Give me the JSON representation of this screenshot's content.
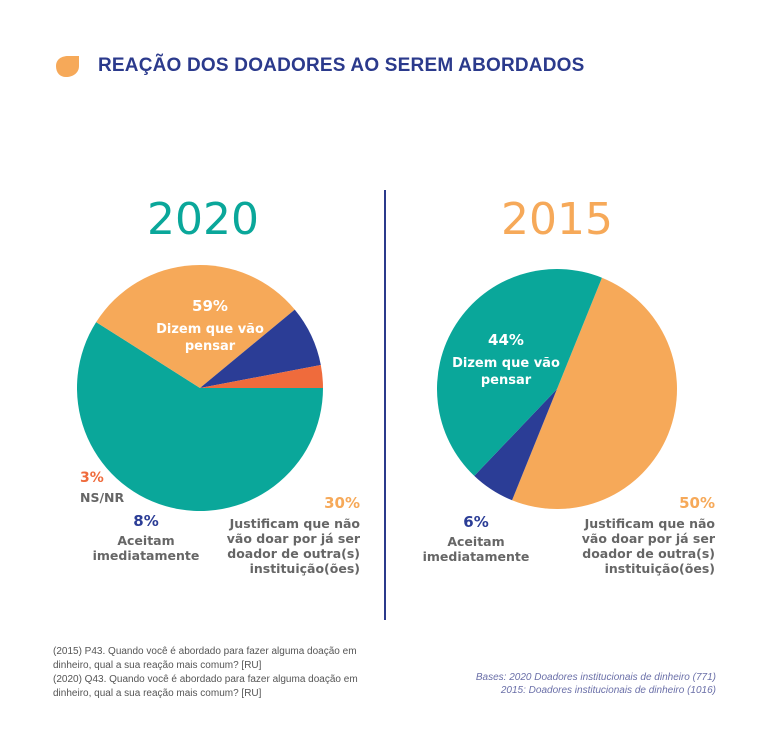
{
  "title": "REAÇÃO DOS DOADORES AO SEREM ABORDADOS",
  "colors": {
    "title": "#2b3a8c",
    "accent_orange": "#f6a959",
    "teal": "#0aa79a",
    "navy": "#2b3d96",
    "red_orange": "#ef6b3c",
    "divider": "#2b3a8c"
  },
  "chart_data": [
    {
      "type": "pie",
      "title": "2020",
      "slices": [
        {
          "label": "Dizem que vão pensar",
          "value": 59,
          "color": "#0aa79a",
          "pct_text": "59%"
        },
        {
          "label": "Justificam que não vão doar por já ser doador de outra(s) instituição(ões)",
          "value": 30,
          "color": "#f6a959",
          "pct_text": "30%"
        },
        {
          "label": "Aceitam imediatamente",
          "value": 8,
          "color": "#2b3d96",
          "pct_text": "8%"
        },
        {
          "label": "NS/NR",
          "value": 3,
          "color": "#ef6b3c",
          "pct_text": "3%"
        }
      ]
    },
    {
      "type": "pie",
      "title": "2015",
      "slices": [
        {
          "label": "Dizem que vão pensar",
          "value": 44,
          "color": "#0aa79a",
          "pct_text": "44%"
        },
        {
          "label": "Justificam que não vão doar por já ser doador de outra(s) instituição(ões)",
          "value": 50,
          "color": "#f6a959",
          "pct_text": "50%"
        },
        {
          "label": "Aceitam imediatamente",
          "value": 6,
          "color": "#2b3d96",
          "pct_text": "6%"
        }
      ]
    }
  ],
  "labels_2020": {
    "teal_pct": "59%",
    "teal_l1": "Dizem que vão",
    "teal_l2": "pensar",
    "red_pct": "3%",
    "red_text": "NS/NR",
    "navy_pct": "8%",
    "navy_l1": "Aceitam",
    "navy_l2": "imediatamente",
    "orange_pct": "30%",
    "orange_l1": "Justificam que não",
    "orange_l2": "vão doar por já ser",
    "orange_l3": "doador de outra(s)",
    "orange_l4": "instituição(ões)"
  },
  "labels_2015": {
    "teal_pct": "44%",
    "teal_l1": "Dizem que vão",
    "teal_l2": "pensar",
    "navy_pct": "6%",
    "navy_l1": "Aceitam",
    "navy_l2": "imediatamente",
    "orange_pct": "50%",
    "orange_l1": "Justificam que não",
    "orange_l2": "vão doar por já ser",
    "orange_l3": "doador de outra(s)",
    "orange_l4": "instituição(ões)"
  },
  "footnote_questions": [
    "(2015) P43. Quando você é abordado para fazer alguma doação em",
    "dinheiro, qual a sua reação mais comum? [RU]",
    "(2020) Q43. Quando você é abordado para fazer alguma doação em",
    "dinheiro, qual a sua reação mais comum? [RU]"
  ],
  "footnote_bases": [
    "Bases: 2020 Doadores institucionais de dinheiro (771)",
    "2015: Doadores institucionais de dinheiro (1016)"
  ]
}
